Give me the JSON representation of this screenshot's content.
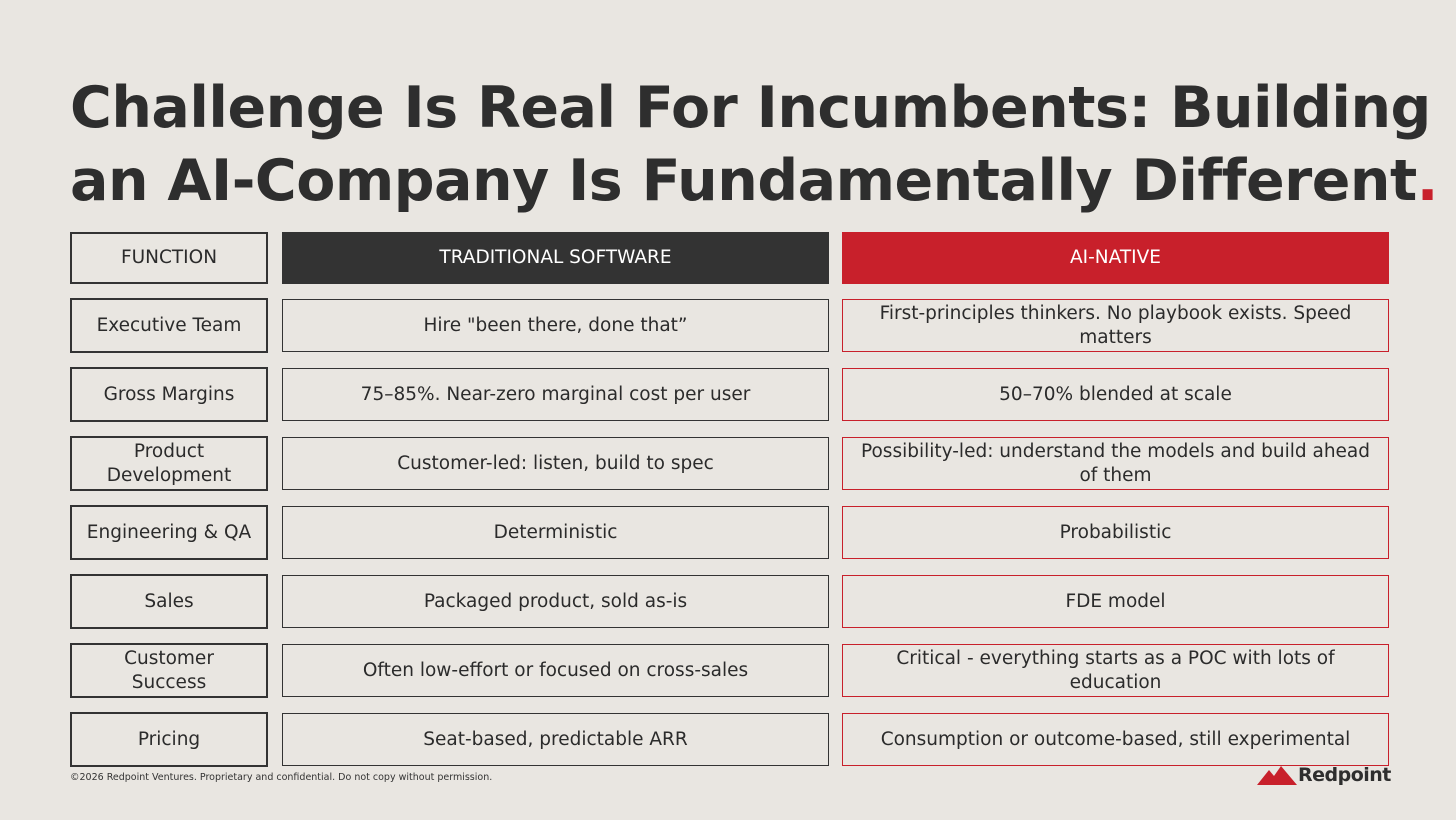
{
  "title_lines": [
    "Challenge Is Real For Incumbents: Building",
    "an AI-Company Is Fundamentally Different"
  ],
  "title_mark": ".",
  "table": {
    "header": [
      "FUNCTION",
      "TRADITIONAL SOFTWARE",
      "AI-NATIVE"
    ],
    "rows": [
      [
        "Executive Team",
        "Hire \"been there, done that”",
        "First-principles thinkers. No playbook exists. Speed matters"
      ],
      [
        "Gross Margins",
        "75–85%. Near-zero marginal cost per user",
        "50–70% blended at scale"
      ],
      [
        "Product Development",
        "Customer-led: listen, build to spec",
        "Possibility-led: understand the models and build ahead of them"
      ],
      [
        "Engineering & QA",
        "Deterministic",
        "Probabilistic"
      ],
      [
        "Sales",
        "Packaged product, sold as-is",
        "FDE model"
      ],
      [
        "Customer Success",
        "Often low-effort or focused on cross-sales",
        "Critical - everything starts as a POC with lots of education"
      ],
      [
        "Pricing",
        "Seat-based, predictable ARR",
        "Consumption or outcome-based, still experimental"
      ]
    ]
  },
  "footer": "©2026 Redpoint Ventures. Proprietary and confidential. Do not copy without permission.",
  "logo": "Redpoint"
}
